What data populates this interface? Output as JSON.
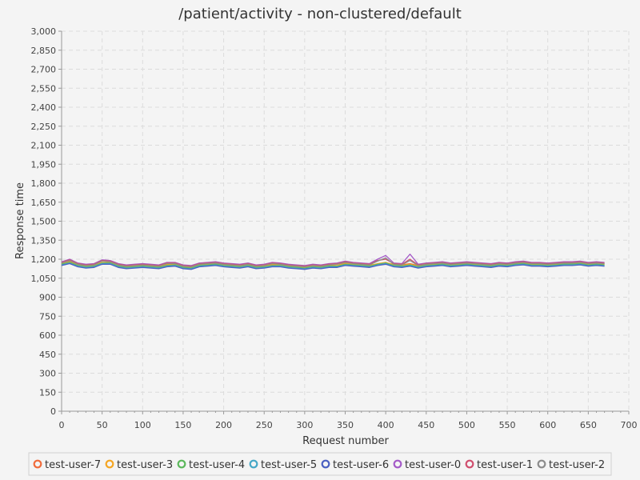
{
  "chart_data": {
    "type": "line",
    "title": "/patient/activity - non-clustered/default",
    "xlabel": "Request number",
    "ylabel": "Response time",
    "xlim": [
      0,
      700
    ],
    "ylim": [
      0,
      3000
    ],
    "x_ticks": [
      0,
      50,
      100,
      150,
      200,
      250,
      300,
      350,
      400,
      450,
      500,
      550,
      600,
      650,
      700
    ],
    "y_ticks": [
      0,
      150,
      300,
      450,
      600,
      750,
      900,
      1050,
      1200,
      1350,
      1500,
      1650,
      1800,
      1950,
      2100,
      2250,
      2400,
      2550,
      2700,
      2850,
      3000
    ],
    "x_tick_labels": [
      "0",
      "50",
      "100",
      "150",
      "200",
      "250",
      "300",
      "350",
      "400",
      "450",
      "500",
      "550",
      "600",
      "650",
      "700"
    ],
    "y_tick_labels": [
      "0",
      "150",
      "300",
      "450",
      "600",
      "750",
      "900",
      "1,050",
      "1,200",
      "1,350",
      "1,500",
      "1,650",
      "1,800",
      "1,950",
      "2,100",
      "2,250",
      "2,400",
      "2,550",
      "2,700",
      "2,850",
      "3,000"
    ],
    "grid": true,
    "legend_position": "bottom",
    "x": [
      0,
      10,
      20,
      30,
      40,
      50,
      60,
      70,
      80,
      90,
      100,
      110,
      120,
      130,
      140,
      150,
      160,
      170,
      180,
      190,
      200,
      210,
      220,
      230,
      240,
      250,
      260,
      270,
      280,
      290,
      300,
      310,
      320,
      330,
      340,
      350,
      360,
      370,
      380,
      390,
      400,
      410,
      420,
      430,
      440,
      450,
      460,
      470,
      480,
      490,
      500,
      510,
      520,
      530,
      540,
      550,
      560,
      570,
      580,
      590,
      600,
      610,
      620,
      630,
      640,
      650,
      660,
      670
    ],
    "series": [
      {
        "name": "test-user-7",
        "color": "#f06c3c",
        "values": [
          1170,
          1185,
          1160,
          1150,
          1155,
          1165,
          1180,
          1160,
          1145,
          1150,
          1155,
          1150,
          1145,
          1155,
          1165,
          1145,
          1140,
          1150,
          1165,
          1170,
          1160,
          1155,
          1150,
          1160,
          1145,
          1150,
          1155,
          1160,
          1150,
          1145,
          1140,
          1150,
          1145,
          1155,
          1160,
          1170,
          1165,
          1160,
          1155,
          1160,
          1170,
          1160,
          1155,
          1165,
          1150,
          1160,
          1165,
          1170,
          1160,
          1165,
          1170,
          1165,
          1160,
          1155,
          1165,
          1160,
          1170,
          1175,
          1165,
          1165,
          1160,
          1165,
          1170,
          1170,
          1175,
          1165,
          1170,
          1165
        ]
      },
      {
        "name": "test-user-3",
        "color": "#f5a623",
        "values": [
          1165,
          1180,
          1155,
          1145,
          1150,
          1175,
          1175,
          1150,
          1140,
          1145,
          1150,
          1145,
          1140,
          1160,
          1160,
          1140,
          1135,
          1155,
          1160,
          1165,
          1155,
          1150,
          1145,
          1155,
          1140,
          1145,
          1160,
          1155,
          1145,
          1140,
          1135,
          1145,
          1140,
          1150,
          1150,
          1165,
          1160,
          1155,
          1150,
          1165,
          1175,
          1155,
          1150,
          1160,
          1145,
          1155,
          1160,
          1165,
          1155,
          1160,
          1165,
          1160,
          1155,
          1150,
          1160,
          1155,
          1165,
          1170,
          1160,
          1160,
          1155,
          1160,
          1165,
          1165,
          1170,
          1160,
          1165,
          1160
        ]
      },
      {
        "name": "test-user-4",
        "color": "#5cb85c",
        "values": [
          1160,
          1175,
          1150,
          1140,
          1145,
          1170,
          1170,
          1145,
          1135,
          1140,
          1145,
          1140,
          1135,
          1150,
          1155,
          1135,
          1130,
          1150,
          1155,
          1160,
          1150,
          1145,
          1140,
          1150,
          1135,
          1140,
          1150,
          1150,
          1140,
          1135,
          1130,
          1140,
          1135,
          1145,
          1145,
          1160,
          1155,
          1150,
          1145,
          1160,
          1170,
          1150,
          1145,
          1155,
          1140,
          1150,
          1155,
          1160,
          1150,
          1155,
          1160,
          1155,
          1150,
          1145,
          1155,
          1150,
          1160,
          1165,
          1155,
          1155,
          1150,
          1155,
          1160,
          1160,
          1165,
          1155,
          1160,
          1155
        ]
      },
      {
        "name": "test-user-5",
        "color": "#46a8c7",
        "values": [
          1155,
          1170,
          1145,
          1135,
          1140,
          1165,
          1165,
          1140,
          1130,
          1135,
          1140,
          1135,
          1130,
          1145,
          1150,
          1130,
          1125,
          1145,
          1150,
          1155,
          1145,
          1140,
          1135,
          1145,
          1130,
          1135,
          1145,
          1145,
          1135,
          1130,
          1125,
          1135,
          1130,
          1140,
          1140,
          1155,
          1150,
          1145,
          1140,
          1155,
          1165,
          1145,
          1140,
          1150,
          1135,
          1145,
          1150,
          1155,
          1145,
          1150,
          1155,
          1150,
          1145,
          1140,
          1150,
          1145,
          1155,
          1160,
          1150,
          1150,
          1145,
          1150,
          1155,
          1155,
          1160,
          1150,
          1155,
          1150
        ]
      },
      {
        "name": "test-user-6",
        "color": "#4a5fc1",
        "values": [
          1150,
          1165,
          1140,
          1130,
          1135,
          1160,
          1160,
          1135,
          1125,
          1130,
          1135,
          1130,
          1125,
          1140,
          1145,
          1125,
          1120,
          1140,
          1145,
          1150,
          1140,
          1135,
          1130,
          1140,
          1125,
          1130,
          1140,
          1140,
          1130,
          1125,
          1120,
          1130,
          1125,
          1135,
          1135,
          1150,
          1145,
          1140,
          1135,
          1150,
          1160,
          1140,
          1135,
          1145,
          1130,
          1140,
          1145,
          1150,
          1140,
          1145,
          1150,
          1145,
          1140,
          1135,
          1145,
          1140,
          1150,
          1155,
          1145,
          1145,
          1140,
          1145,
          1150,
          1150,
          1155,
          1145,
          1150,
          1145
        ]
      },
      {
        "name": "test-user-0",
        "color": "#a45bc8",
        "values": [
          1180,
          1200,
          1170,
          1160,
          1165,
          1195,
          1190,
          1165,
          1155,
          1160,
          1165,
          1160,
          1155,
          1175,
          1175,
          1155,
          1150,
          1170,
          1175,
          1180,
          1170,
          1165,
          1160,
          1170,
          1155,
          1160,
          1175,
          1170,
          1160,
          1155,
          1150,
          1160,
          1155,
          1165,
          1170,
          1185,
          1175,
          1170,
          1165,
          1200,
          1230,
          1170,
          1165,
          1240,
          1160,
          1170,
          1175,
          1180,
          1170,
          1175,
          1180,
          1175,
          1170,
          1165,
          1175,
          1170,
          1180,
          1185,
          1175,
          1175,
          1170,
          1175,
          1180,
          1180,
          1185,
          1175,
          1180,
          1175
        ]
      },
      {
        "name": "test-user-1",
        "color": "#d04f6e",
        "values": [
          1175,
          1195,
          1165,
          1155,
          1160,
          1190,
          1185,
          1160,
          1150,
          1155,
          1160,
          1155,
          1150,
          1170,
          1170,
          1150,
          1145,
          1165,
          1170,
          1175,
          1165,
          1160,
          1155,
          1165,
          1150,
          1155,
          1170,
          1165,
          1155,
          1150,
          1145,
          1155,
          1150,
          1160,
          1165,
          1180,
          1170,
          1165,
          1160,
          1190,
          1200,
          1165,
          1160,
          1200,
          1155,
          1165,
          1170,
          1175,
          1165,
          1170,
          1175,
          1170,
          1165,
          1160,
          1170,
          1165,
          1175,
          1180,
          1170,
          1170,
          1165,
          1170,
          1175,
          1175,
          1180,
          1170,
          1175,
          1170
        ]
      },
      {
        "name": "test-user-2",
        "color": "#8c8c8c",
        "values": [
          1170,
          1190,
          1160,
          1150,
          1155,
          1185,
          1180,
          1155,
          1145,
          1150,
          1155,
          1150,
          1145,
          1165,
          1165,
          1145,
          1140,
          1160,
          1165,
          1170,
          1160,
          1155,
          1150,
          1160,
          1145,
          1150,
          1165,
          1160,
          1150,
          1145,
          1140,
          1150,
          1145,
          1155,
          1160,
          1175,
          1165,
          1160,
          1155,
          1185,
          1210,
          1160,
          1155,
          1190,
          1150,
          1160,
          1165,
          1170,
          1160,
          1165,
          1170,
          1165,
          1160,
          1155,
          1165,
          1160,
          1170,
          1175,
          1165,
          1165,
          1160,
          1165,
          1170,
          1170,
          1175,
          1165,
          1170,
          1165
        ]
      }
    ]
  }
}
